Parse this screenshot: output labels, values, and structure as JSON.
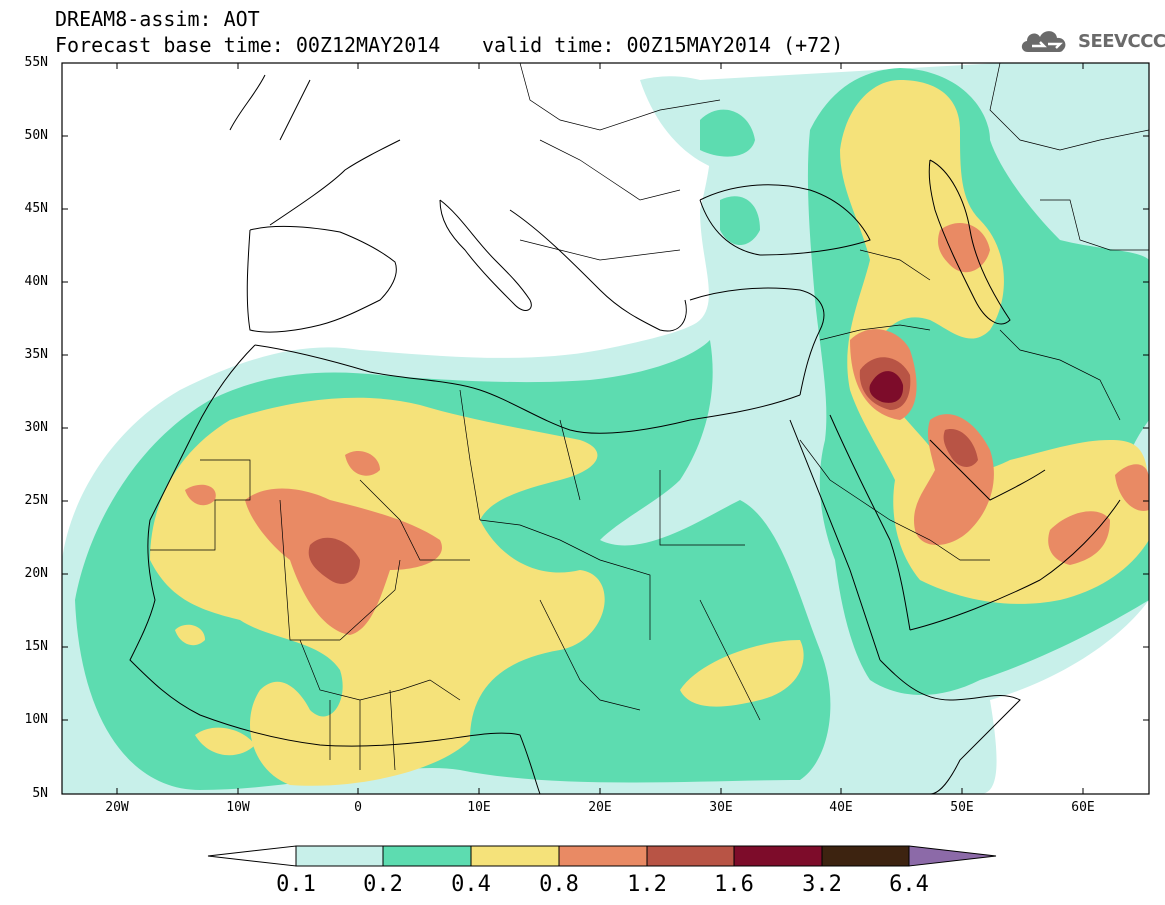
{
  "title": {
    "line1": "DREAM8-assim: AOT",
    "line2": "Forecast base time: 00Z12MAY2014",
    "valid": "valid time: 00Z15MAY2014 (+72)"
  },
  "logo": {
    "text": "SEEVCCC",
    "icon": "cloud-icon"
  },
  "axes": {
    "lat_labels": [
      "55N",
      "50N",
      "45N",
      "40N",
      "35N",
      "30N",
      "25N",
      "20N",
      "15N",
      "10N",
      "5N"
    ],
    "lon_labels": [
      "20W",
      "10W",
      "0",
      "10E",
      "20E",
      "30E",
      "40E",
      "50E",
      "60E"
    ],
    "lon_range": [
      -25,
      65
    ],
    "lat_range": [
      5,
      55
    ]
  },
  "colorbar": {
    "labels": [
      "0.1",
      "0.2",
      "0.4",
      "0.8",
      "1.2",
      "1.6",
      "3.2",
      "6.4"
    ],
    "colors": [
      "#ffffff",
      "#c8f0ea",
      "#5ddcb0",
      "#f5e27a",
      "#e98a64",
      "#b85445",
      "#7d0c2a",
      "#3d2310",
      "#8c6aa8"
    ]
  }
}
